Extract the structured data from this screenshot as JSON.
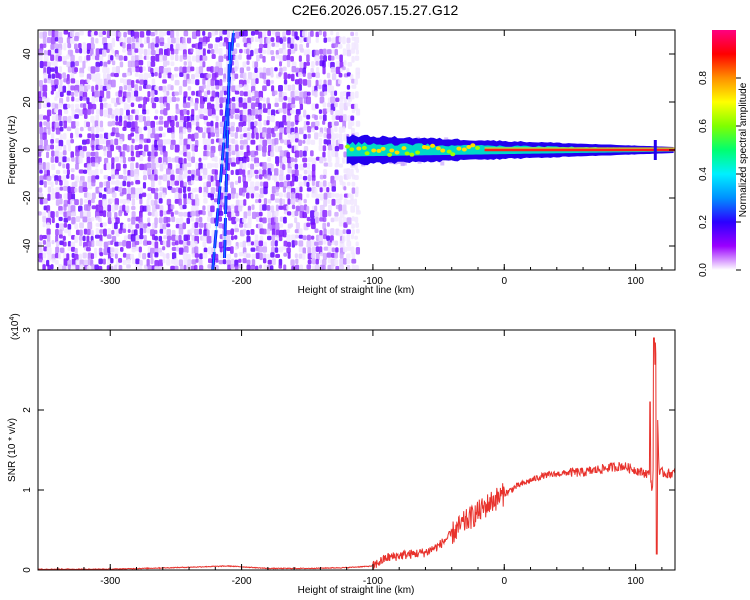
{
  "title": "C2E6.2026.057.15.27.G12",
  "colors": {
    "snr_line": "#e8322c",
    "sweep_line": "#1a1aff",
    "background": "#ffffff"
  },
  "chart_data": [
    {
      "type": "heatmap",
      "name": "spectrogram",
      "xlabel": "Height of straight line (km)",
      "ylabel": "Frequency (Hz)",
      "xlim": [
        -355,
        130
      ],
      "ylim": [
        -50,
        50
      ],
      "xticks": [
        -300,
        -200,
        -100,
        0,
        100
      ],
      "yticks": [
        -40,
        -20,
        0,
        20,
        40
      ],
      "noise_region_km": [
        -355,
        -112
      ],
      "signal_start_km": -120,
      "signal_frequency_hz": 0,
      "sweep_lines": [
        {
          "x_start": -222,
          "y_start": -50,
          "x_end": -206,
          "y_end": 50
        },
        {
          "x_start": -213,
          "y_start": -45,
          "x_start_top": -209,
          "x_end": -209,
          "y_end": 45
        }
      ]
    },
    {
      "type": "colorbar",
      "label": "Normalized spectral amplitude",
      "range": [
        0.0,
        1.0
      ],
      "ticks": [
        0.0,
        0.2,
        0.4,
        0.6,
        0.8
      ],
      "tick_labels": [
        "0.0",
        "0.2",
        "0.4",
        "0.6",
        "0.8"
      ],
      "colormap": [
        "#ffffff",
        "#9a00ff",
        "#2b00ff",
        "#0090ff",
        "#00f0ff",
        "#00ff70",
        "#80ff00",
        "#ffff00",
        "#ff9000",
        "#ff0000",
        "#ff0080"
      ]
    },
    {
      "type": "line",
      "name": "snr",
      "xlabel": "Height of straight line (km)",
      "ylabel": "SNR (10 * v/v)",
      "y_multiplier": "(x10",
      "y_multiplier_exp": "4",
      "xlim": [
        -355,
        130
      ],
      "ylim": [
        0,
        3
      ],
      "xticks": [
        -300,
        -200,
        -100,
        0,
        100
      ],
      "yticks": [
        0,
        1,
        2,
        3
      ],
      "series": [
        {
          "name": "SNR",
          "x": [
            -355,
            -300,
            -250,
            -210,
            -180,
            -150,
            -120,
            -100,
            -90,
            -80,
            -70,
            -60,
            -50,
            -40,
            -30,
            -20,
            -10,
            0,
            10,
            20,
            30,
            40,
            50,
            60,
            70,
            80,
            90,
            100,
            105,
            110,
            113,
            115,
            118,
            120,
            125,
            130
          ],
          "values": [
            0.01,
            0.01,
            0.03,
            0.05,
            0.02,
            0.02,
            0.03,
            0.05,
            0.15,
            0.18,
            0.2,
            0.22,
            0.3,
            0.45,
            0.6,
            0.72,
            0.85,
            0.95,
            1.05,
            1.12,
            1.18,
            1.2,
            1.22,
            1.22,
            1.25,
            1.28,
            1.3,
            1.25,
            1.22,
            1.2,
            1.0,
            2.9,
            1.2,
            1.22,
            1.2,
            1.22
          ]
        }
      ]
    }
  ]
}
